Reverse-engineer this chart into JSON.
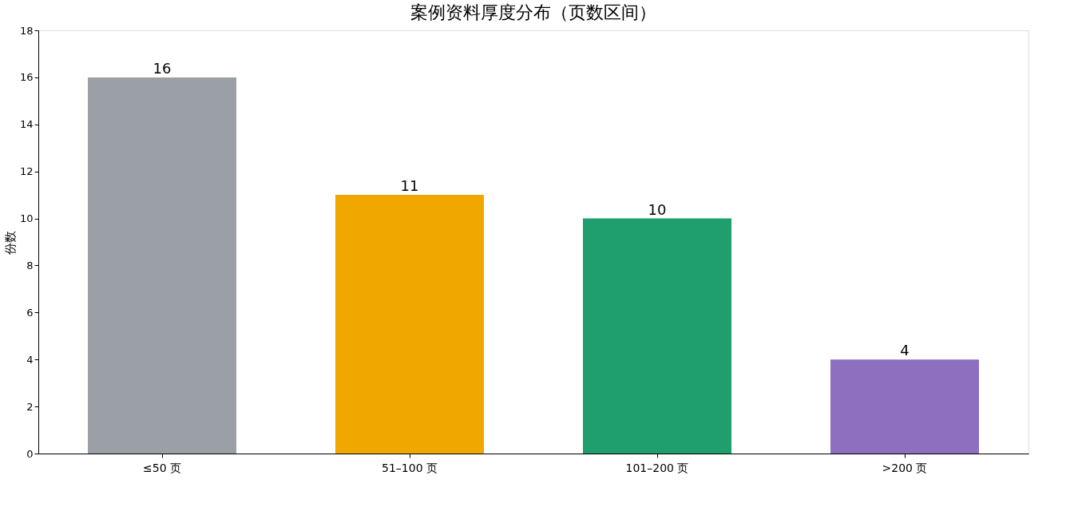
{
  "chart_data": {
    "type": "bar",
    "title": "案例资料厚度分布（页数区间）",
    "ylabel": "份数",
    "categories": [
      "≤50 页",
      "51–100 页",
      "101–200 页",
      ">200 页"
    ],
    "values": [
      16,
      11,
      10,
      4
    ],
    "colors": [
      "#9aa0a6",
      "#f0a800",
      "#1f9e6e",
      "#8e6fbf"
    ],
    "ylim": [
      0,
      18
    ],
    "yticks": [
      0,
      2,
      4,
      6,
      8,
      10,
      12,
      14,
      16,
      18
    ],
    "data_labels": true,
    "grid": false,
    "legend": false
  }
}
